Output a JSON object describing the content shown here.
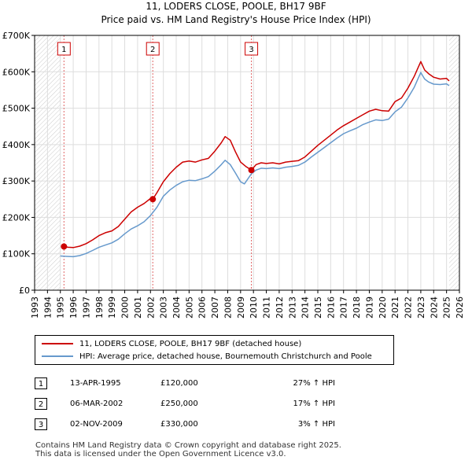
{
  "header": {
    "title": "11, LODERS CLOSE, POOLE, BH17 9BF",
    "subtitle": "Price paid vs. HM Land Registry's House Price Index (HPI)"
  },
  "chart_data": {
    "type": "line",
    "title": "11, LODERS CLOSE, POOLE, BH17 9BF",
    "subtitle": "Price paid vs. HM Land Registry's House Price Index (HPI)",
    "xlabel": "",
    "ylabel": "",
    "xlim": [
      1993,
      2026
    ],
    "ylim": [
      0,
      700000
    ],
    "x_ticks": [
      1993,
      1994,
      1995,
      1996,
      1997,
      1998,
      1999,
      2000,
      2001,
      2002,
      2003,
      2004,
      2005,
      2006,
      2007,
      2008,
      2009,
      2010,
      2011,
      2012,
      2013,
      2014,
      2015,
      2016,
      2017,
      2018,
      2019,
      2020,
      2021,
      2022,
      2023,
      2024,
      2025,
      2026
    ],
    "y_ticks": [
      {
        "value": 0,
        "label": "£0"
      },
      {
        "value": 100000,
        "label": "£100K"
      },
      {
        "value": 200000,
        "label": "£200K"
      },
      {
        "value": 300000,
        "label": "£300K"
      },
      {
        "value": 400000,
        "label": "£400K"
      },
      {
        "value": 500000,
        "label": "£500K"
      },
      {
        "value": 600000,
        "label": "£600K"
      },
      {
        "value": 700000,
        "label": "£700K"
      }
    ],
    "grid": true,
    "hatched_ranges": [
      [
        1993,
        1995.0
      ],
      [
        2025.2,
        2026
      ]
    ],
    "series": [
      {
        "name": "11, LODERS CLOSE, POOLE, BH17 9BF (detached house)",
        "color": "#cc0000",
        "x": [
          1995.28,
          1995.6,
          1996.0,
          1996.5,
          1997.0,
          1997.5,
          1998.0,
          1998.5,
          1999.0,
          1999.5,
          2000.0,
          2000.5,
          2001.0,
          2001.5,
          2002.0,
          2002.18,
          2002.5,
          2003.0,
          2003.5,
          2004.0,
          2004.5,
          2005.0,
          2005.5,
          2006.0,
          2006.5,
          2007.0,
          2007.5,
          2007.8,
          2008.2,
          2008.6,
          2009.0,
          2009.4,
          2009.84,
          2010.2,
          2010.6,
          2011.0,
          2011.5,
          2012.0,
          2012.5,
          2013.0,
          2013.5,
          2014.0,
          2014.5,
          2015.0,
          2015.5,
          2016.0,
          2016.5,
          2017.0,
          2017.5,
          2018.0,
          2018.5,
          2019.0,
          2019.5,
          2020.0,
          2020.5,
          2021.0,
          2021.5,
          2022.0,
          2022.5,
          2022.8,
          2023.0,
          2023.3,
          2023.6,
          2024.0,
          2024.5,
          2025.0,
          2025.2
        ],
        "values": [
          120000,
          118000,
          117000,
          121000,
          128000,
          138000,
          150000,
          158000,
          163000,
          175000,
          195000,
          215000,
          228000,
          238000,
          252000,
          250000,
          268000,
          298000,
          320000,
          338000,
          352000,
          355000,
          352000,
          358000,
          362000,
          382000,
          405000,
          422000,
          412000,
          380000,
          352000,
          340000,
          330000,
          345000,
          350000,
          348000,
          350000,
          347000,
          352000,
          354000,
          356000,
          366000,
          382000,
          398000,
          412000,
          426000,
          440000,
          452000,
          462000,
          472000,
          482000,
          492000,
          497000,
          493000,
          492000,
          518000,
          528000,
          555000,
          588000,
          612000,
          628000,
          605000,
          595000,
          585000,
          580000,
          582000,
          575000
        ]
      },
      {
        "name": "HPI: Average price, detached house, Bournemouth Christchurch and Poole",
        "color": "#6699cc",
        "x": [
          1995.0,
          1995.5,
          1996.0,
          1996.5,
          1997.0,
          1997.5,
          1998.0,
          1998.5,
          1999.0,
          1999.5,
          2000.0,
          2000.5,
          2001.0,
          2001.5,
          2002.0,
          2002.5,
          2003.0,
          2003.5,
          2004.0,
          2004.5,
          2005.0,
          2005.5,
          2006.0,
          2006.5,
          2007.0,
          2007.5,
          2007.8,
          2008.2,
          2008.6,
          2009.0,
          2009.3,
          2009.84,
          2010.2,
          2010.6,
          2011.0,
          2011.5,
          2012.0,
          2012.5,
          2013.0,
          2013.5,
          2014.0,
          2014.5,
          2015.0,
          2015.5,
          2016.0,
          2016.5,
          2017.0,
          2017.5,
          2018.0,
          2018.5,
          2019.0,
          2019.5,
          2020.0,
          2020.5,
          2021.0,
          2021.5,
          2022.0,
          2022.5,
          2022.8,
          2023.0,
          2023.3,
          2023.6,
          2024.0,
          2024.5,
          2025.0,
          2025.2
        ],
        "values": [
          94000,
          93000,
          92000,
          95000,
          101000,
          109000,
          118000,
          124000,
          130000,
          140000,
          155000,
          168000,
          177000,
          188000,
          205000,
          228000,
          258000,
          275000,
          288000,
          298000,
          302000,
          301000,
          306000,
          312000,
          327000,
          345000,
          357000,
          345000,
          322000,
          298000,
          292000,
          320000,
          330000,
          335000,
          334000,
          336000,
          334000,
          338000,
          340000,
          343000,
          352000,
          366000,
          379000,
          392000,
          405000,
          418000,
          430000,
          438000,
          445000,
          455000,
          462000,
          468000,
          466000,
          470000,
          490000,
          503000,
          528000,
          558000,
          582000,
          598000,
          580000,
          572000,
          566000,
          565000,
          567000,
          562000
        ]
      }
    ],
    "sale_markers": [
      {
        "label": "1",
        "x": 1995.28,
        "value": 120000
      },
      {
        "label": "2",
        "x": 2002.18,
        "value": 250000
      },
      {
        "label": "3",
        "x": 2009.84,
        "value": 330000
      }
    ]
  },
  "legend": {
    "entries": [
      {
        "label": "11, LODERS CLOSE, POOLE, BH17 9BF (detached house)",
        "color": "#cc0000"
      },
      {
        "label": "HPI: Average price, detached house, Bournemouth Christchurch and Poole",
        "color": "#6699cc"
      }
    ]
  },
  "sales": [
    {
      "num": "1",
      "date": "13-APR-1995",
      "price": "£120,000",
      "hpi": "27% ↑ HPI"
    },
    {
      "num": "2",
      "date": "06-MAR-2002",
      "price": "£250,000",
      "hpi": "17% ↑ HPI"
    },
    {
      "num": "3",
      "date": "02-NOV-2009",
      "price": "£330,000",
      "hpi": "3% ↑ HPI"
    }
  ],
  "footer": {
    "line1": "Contains HM Land Registry data © Crown copyright and database right 2025.",
    "line2": "This data is licensed under the Open Government Licence v3.0."
  }
}
